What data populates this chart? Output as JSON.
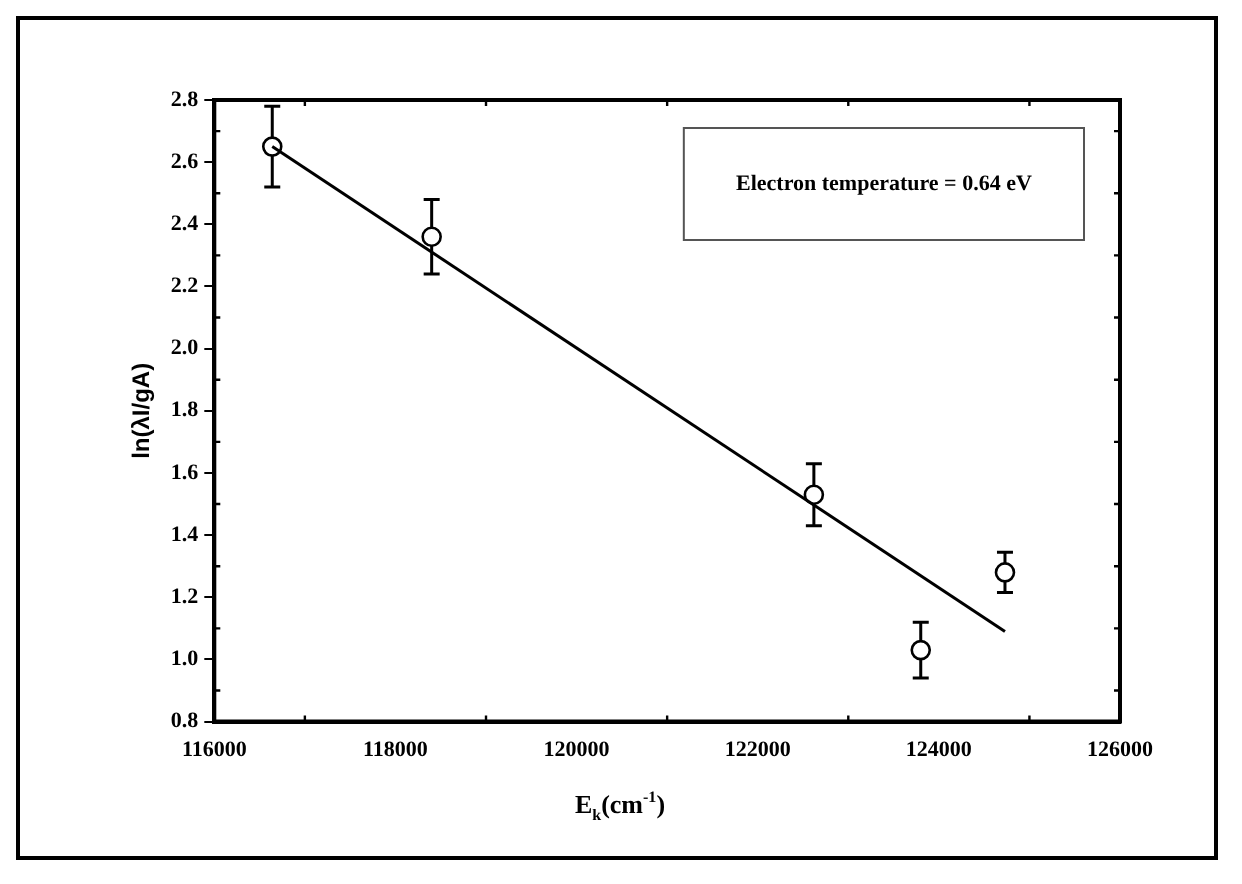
{
  "chart_data": {
    "type": "scatter",
    "xlabel": "E$_{k}$(cm$^{-1}$)",
    "ylabel": "ln(λI/gA)",
    "xlim": [
      116000,
      126000
    ],
    "xticks": [
      116000,
      118000,
      120000,
      122000,
      124000,
      126000
    ],
    "ylim": [
      0.8,
      2.8
    ],
    "yticks": [
      0.8,
      {
        "value": 1,
        "label": "1.0"
      },
      1.2,
      1.4,
      1.6,
      1.8,
      {
        "value": 2,
        "label": "2.0"
      },
      2.2,
      2.4,
      2.6,
      2.8
    ],
    "grid": false,
    "legend": false,
    "marker": "circle",
    "annotations": [
      "Electron temperature = 0.64 eV"
    ],
    "series": [
      {
        "type": "scatter",
        "color": "#000000",
        "x": [
          116640,
          118400,
          122620,
          123800,
          124730
        ],
        "values": [
          2.65,
          2.36,
          1.53,
          1.03,
          1.28
        ],
        "errors": [
          0.13,
          0.12,
          0.1,
          0.09,
          0.065
        ]
      },
      {
        "type": "line",
        "color": "#000000",
        "marker": "none",
        "x": [
          116640,
          124730
        ],
        "values": [
          2.65,
          1.09
        ]
      }
    ]
  }
}
